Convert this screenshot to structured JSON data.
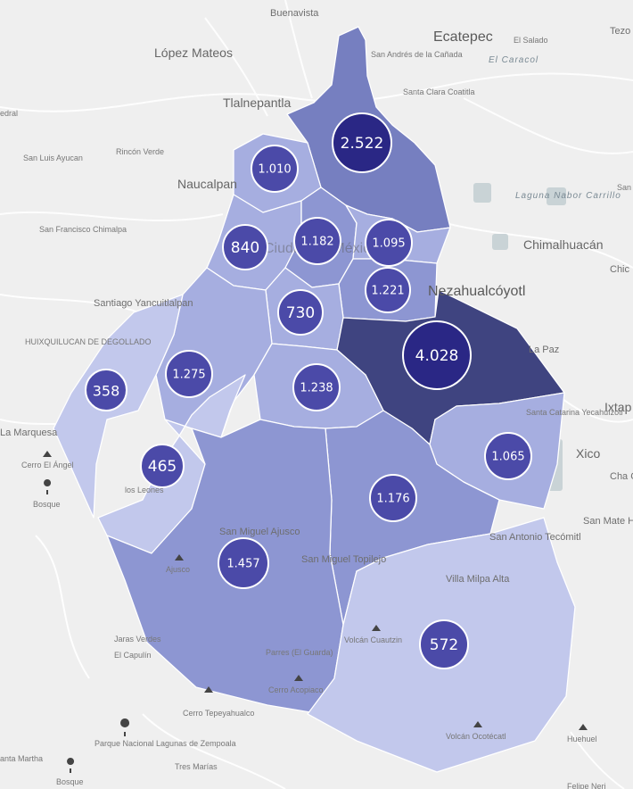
{
  "colors": {
    "background": "#efefef",
    "road": "#ffffff",
    "water": "#c9d3d6",
    "muni_scale": [
      "#c2c8ec",
      "#a6aee0",
      "#8d96d2",
      "#767fc0",
      "#5d64a6",
      "#3f4480"
    ],
    "bubble_fill": "#4b4aa8",
    "bubble_big_fill": "#2a2785",
    "bubble_stroke": "#ffffff"
  },
  "map": {
    "place_labels": [
      "Buenavista",
      "Ecatepec",
      "El Salado",
      "El Caracol",
      "Tezo",
      "López Mateos",
      "San Andrés de la Cañada",
      "Tlalnepantla",
      "Santa Clara Coatitla",
      "edral",
      "Rincón Verde",
      "San Luis Ayucan",
      "Naucalpan",
      "Laguna Nabor Carrillo",
      "San",
      "San Francisco Chimalpa",
      "Ciudad de México",
      "Chimalhuacán",
      "Chic",
      "Santiago Yancuitlalpan",
      "Nezahualcóyotl",
      "HUIXQUILUCAN DE DEGOLLADO",
      "La Paz",
      "Ixtap",
      "La Marquesa",
      "Santa Catarina Yecahuízotl",
      "Xico",
      "Cerro El Ángel",
      "Bosque",
      "Cha Co",
      "los Leones",
      "San Mate Huitzilzing",
      "San Miguel Ajusco",
      "San Miguel Topilejo",
      "San Antonio Tecómitl",
      "Ajusco",
      "Villa Milpa Alta",
      "Jaras Verdes",
      "El Capulín",
      "Volcán Cuautzin",
      "Parres (El Guarda)",
      "Cerro Acopiaco",
      "Cerro Tepeyahualco",
      "Huehuel",
      "Volcán Ocotécatl",
      "Parque Nacional Lagunas de Zempoala",
      "Tres Marías",
      "anta Martha",
      "Bosque",
      "Felipe Neri"
    ],
    "clusters": [
      {
        "label": "2.522"
      },
      {
        "label": "1.010"
      },
      {
        "label": "1.182"
      },
      {
        "label": "1.095"
      },
      {
        "label": "840"
      },
      {
        "label": "1.221"
      },
      {
        "label": "730"
      },
      {
        "label": "4.028"
      },
      {
        "label": "1.275"
      },
      {
        "label": "358"
      },
      {
        "label": "1.238"
      },
      {
        "label": "1.065"
      },
      {
        "label": "465"
      },
      {
        "label": "1.176"
      },
      {
        "label": "1.457"
      },
      {
        "label": "572"
      }
    ]
  }
}
